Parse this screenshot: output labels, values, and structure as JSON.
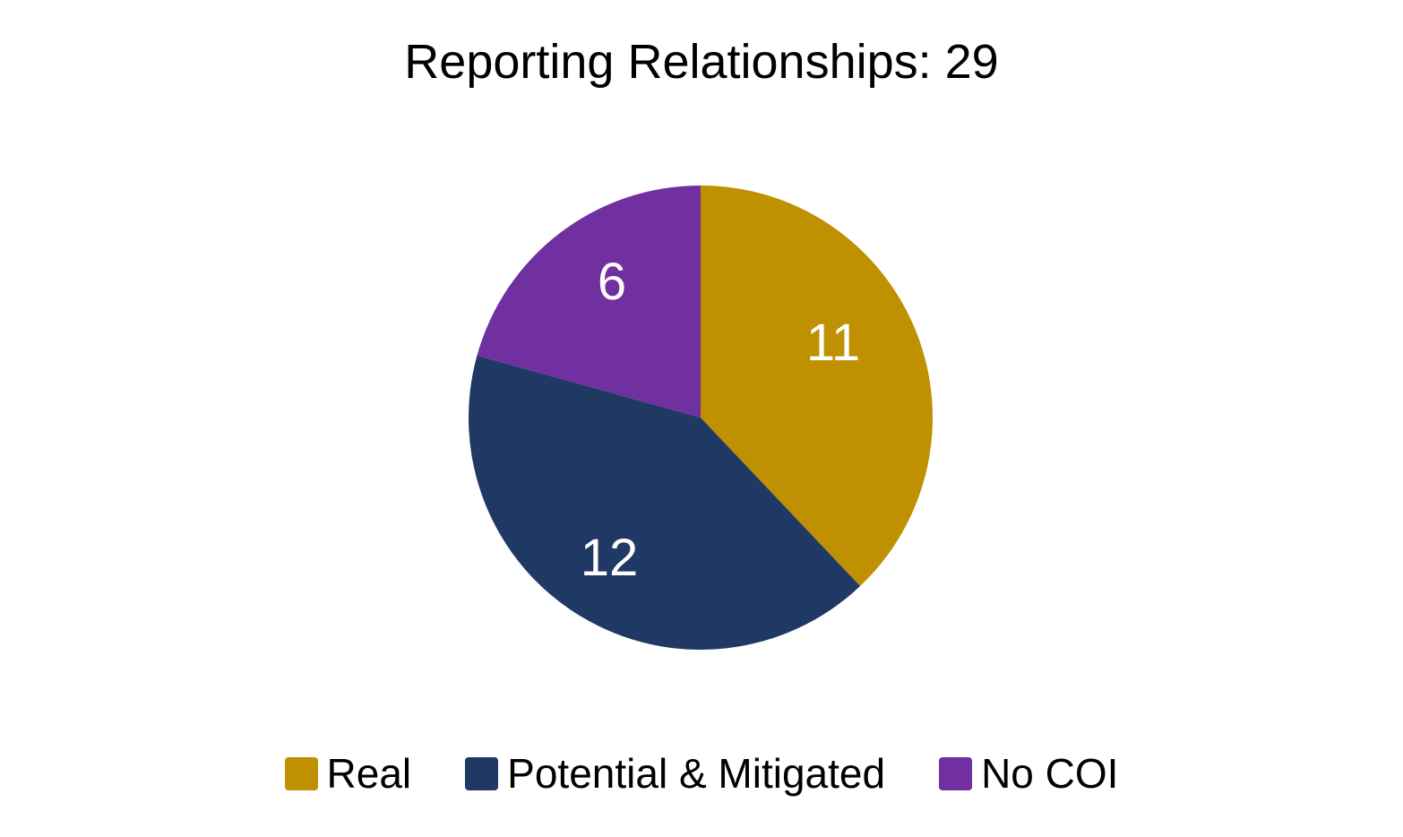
{
  "chart_data": {
    "type": "pie",
    "title": "Reporting Relationships: 29",
    "categories": [
      "Real",
      "Potential & Mitigated",
      "No COI"
    ],
    "values": [
      11,
      12,
      6
    ],
    "colors": [
      "#BF9000",
      "#203864",
      "#7030A0"
    ],
    "data_labels": [
      "11",
      "12",
      "6"
    ],
    "start_angle": "12 o'clock, clockwise",
    "legend_position": "bottom"
  },
  "title": "Reporting Relationships: 29",
  "legend": [
    {
      "label": "Real",
      "color": "#BF9000"
    },
    {
      "label": "Potential & Mitigated",
      "color": "#203864"
    },
    {
      "label": "No COI",
      "color": "#7030A0"
    }
  ]
}
